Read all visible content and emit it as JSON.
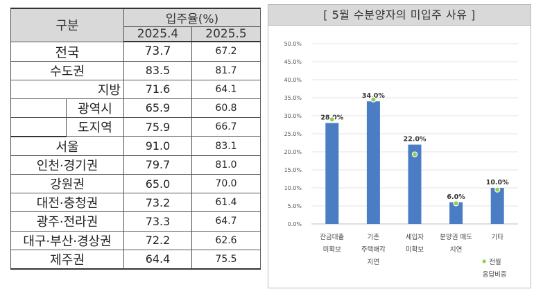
{
  "table": {
    "header_group": "구분",
    "header_metric": "입주율(%)",
    "period1": "2025.4",
    "period2": "2025.5",
    "rows": [
      {
        "region": "전국",
        "v1": "73.7",
        "v2": "67.2"
      },
      {
        "region": "수도권",
        "v1": "83.5",
        "v2": "81.7"
      },
      {
        "region": "지방",
        "v1": "71.6",
        "v2": "64.1"
      },
      {
        "region": "광역시",
        "v1": "65.9",
        "v2": "60.8"
      },
      {
        "region": "도지역",
        "v1": "75.9",
        "v2": "66.7"
      },
      {
        "region": "서울",
        "v1": "91.0",
        "v2": "83.1"
      },
      {
        "region": "인천·경기권",
        "v1": "79.7",
        "v2": "81.0"
      },
      {
        "region": "강원권",
        "v1": "65.0",
        "v2": "70.0"
      },
      {
        "region": "대전·충청권",
        "v1": "73.2",
        "v2": "61.4"
      },
      {
        "region": "광주·전라권",
        "v1": "73.3",
        "v2": "64.7"
      },
      {
        "region": "대구·부산·경상권",
        "v1": "72.2",
        "v2": "62.6"
      },
      {
        "region": "제주권",
        "v1": "64.4",
        "v2": "75.5"
      }
    ]
  },
  "chart_data": {
    "type": "bar",
    "title": "[ 5월 수분양자의 미입주 사유 ]",
    "categories": [
      [
        "잔금대출",
        "미확보"
      ],
      [
        "기존",
        "주택매각",
        "지연"
      ],
      [
        "세입자",
        "미확보"
      ],
      [
        "분양권 매도",
        "지연"
      ],
      [
        "기타"
      ]
    ],
    "series": [
      {
        "values": [
          28.0,
          34.0,
          22.0,
          6.0,
          10.0
        ],
        "data_labels": [
          "28.0%",
          "34.0%",
          "22.0%",
          "6.0%",
          "10.0%"
        ]
      },
      {
        "name": "전월 응답비중",
        "values": [
          29.0,
          34.5,
          19.3,
          5.7,
          9.5
        ]
      }
    ],
    "yticks": [
      "0.0%",
      "5.0%",
      "10.0%",
      "15.0%",
      "20.0%",
      "25.0%",
      "30.0%",
      "35.0%",
      "40.0%",
      "45.0%",
      "50.0%"
    ],
    "ylim": [
      0,
      50
    ],
    "legend": [
      "전월",
      "응답비중"
    ],
    "legend_position": "bottom-right",
    "bar_color": "#4a7dc4",
    "marker_color": "#8fcf4f"
  }
}
